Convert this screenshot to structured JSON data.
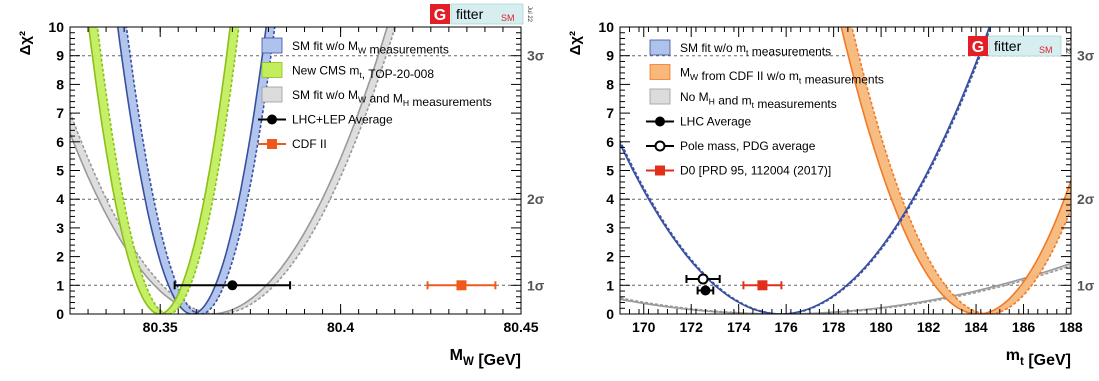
{
  "colors": {
    "sm_fill": "#aec2ec",
    "sm_line": "#3a4fa0",
    "cms_fill": "#c2ee5e",
    "cms_line": "#8cbf1a",
    "gray_fill": "#dcdcdc",
    "gray_line": "#9a9a9a",
    "cdf_fill": "#f7b87a",
    "cdf_line": "#f07a28",
    "point_black": "#000000",
    "point_orange": "#ef5a1c",
    "point_red": "#e0301a",
    "gfitter_red": "#e41e26",
    "gfitter_box": "#d6eef0"
  },
  "chart_data": [
    {
      "type": "line",
      "title": "",
      "xlabel": "M_W [GeV]",
      "ylabel": "Δχ²",
      "xlim": [
        80.325,
        80.45
      ],
      "ylim": [
        0,
        10
      ],
      "xticks": [
        80.35,
        80.4,
        80.45
      ],
      "yticks": [
        0,
        1,
        2,
        3,
        4,
        5,
        6,
        7,
        8,
        9,
        10
      ],
      "sigma_lines": [
        {
          "value": 1,
          "label": "1σ"
        },
        {
          "value": 4,
          "label": "2σ"
        },
        {
          "value": 9,
          "label": "3σ"
        }
      ],
      "grid": false,
      "legend_position": "top-right",
      "logo": {
        "g": "G",
        "text": "fitter",
        "sm": "SM",
        "date": "Jul 22"
      },
      "series": [
        {
          "name": "SM fit w/o M_W measurements",
          "kind": "band",
          "style": "sm",
          "center": 80.36,
          "halfwidth": 0.0065,
          "width": 0.0024
        },
        {
          "name": "New CMS m_t, TOP-20-008",
          "kind": "band",
          "style": "cms",
          "center": 80.351,
          "halfwidth": 0.0062,
          "width": 0.0024
        },
        {
          "name": "SM fit w/o M_W and M_H measurements",
          "kind": "band",
          "style": "gray",
          "center": 80.365,
          "halfwidth": 0.0155,
          "width": 0.0022
        },
        {
          "name": "LHC+LEP Average",
          "kind": "point",
          "style": "black",
          "x": 80.37,
          "xerr": 0.016,
          "y": 1
        },
        {
          "name": "CDF II",
          "kind": "point",
          "style": "orange",
          "x": 80.4335,
          "xerr": 0.0094,
          "y": 1
        }
      ]
    },
    {
      "type": "line",
      "title": "",
      "xlabel": "m_t [GeV]",
      "ylabel": "Δχ²",
      "xlim": [
        169,
        188
      ],
      "ylim": [
        0,
        10
      ],
      "xticks": [
        170,
        172,
        174,
        176,
        178,
        180,
        182,
        184,
        186,
        188
      ],
      "yticks": [
        0,
        1,
        2,
        3,
        4,
        5,
        6,
        7,
        8,
        9,
        10
      ],
      "sigma_lines": [
        {
          "value": 1,
          "label": "1σ"
        },
        {
          "value": 4,
          "label": "2σ"
        },
        {
          "value": 9,
          "label": "3σ"
        }
      ],
      "grid": false,
      "legend_position": "top-left",
      "logo": {
        "g": "G",
        "text": "fitter",
        "sm": "SM",
        "date": "Jul 22"
      },
      "series": [
        {
          "name": "SM fit w/o m_t measurements",
          "kind": "band",
          "style": "sm",
          "center": 175.8,
          "halfwidth": 2.78,
          "width": 0.06
        },
        {
          "name": "M_W from CDF II w/o m_t measurements",
          "kind": "band",
          "style": "cdf",
          "center": 184.3,
          "halfwidth": 1.82,
          "width": 0.45
        },
        {
          "name": "No M_H and m_t measurements",
          "kind": "band",
          "style": "gray",
          "center": 175.8,
          "halfwidth": 9.3,
          "width": 0.3
        },
        {
          "name": "LHC Average",
          "kind": "point",
          "style": "black",
          "x": 172.6,
          "xerr": 0.33,
          "y": 0.82
        },
        {
          "name": "Pole mass, PDG average",
          "kind": "point",
          "style": "open",
          "x": 172.5,
          "xerr": 0.7,
          "y": 1.22
        },
        {
          "name": "D0 [PRD 95, 112004 (2017)]",
          "kind": "point",
          "style": "red",
          "x": 175.0,
          "xerr": 0.8,
          "y": 1
        }
      ]
    }
  ]
}
